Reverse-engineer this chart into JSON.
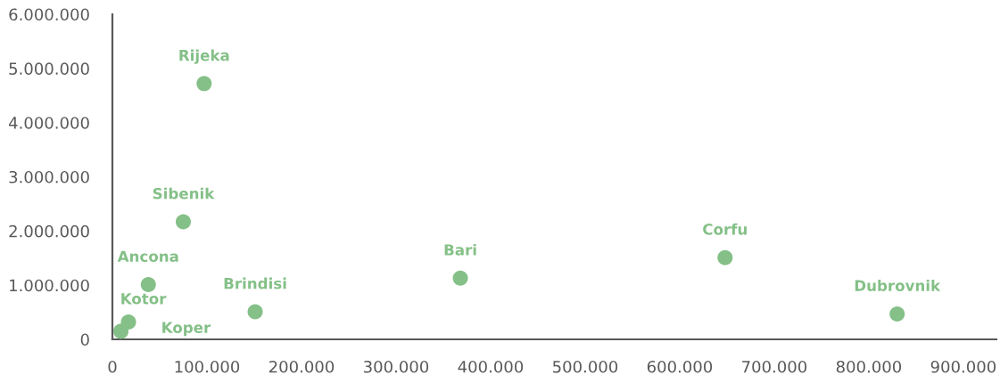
{
  "chart_data": {
    "type": "scatter",
    "xlim": [
      0,
      935000
    ],
    "xticks": [
      0,
      {
        "value": 100000,
        "label": "100.000"
      },
      {
        "value": 200000,
        "label": "200.000"
      },
      {
        "value": 300000,
        "label": "300.000"
      },
      {
        "value": 400000,
        "label": "400.000"
      },
      {
        "value": 500000,
        "label": "500.000"
      },
      {
        "value": 600000,
        "label": "600.000"
      },
      {
        "value": 700000,
        "label": "700.000"
      },
      {
        "value": 800000,
        "label": "800.000"
      },
      {
        "value": 900000,
        "label": "900.000"
      }
    ],
    "ylim": [
      0,
      6000000
    ],
    "yticks": [
      0,
      {
        "value": 1000000,
        "label": "1.000.000"
      },
      {
        "value": 2000000,
        "label": "2.000.000"
      },
      {
        "value": 3000000,
        "label": "3.000.000"
      },
      {
        "value": 4000000,
        "label": "4.000.000"
      },
      {
        "value": 5000000,
        "label": "5.000.000"
      },
      {
        "value": 6000000,
        "label": "6.000.000"
      }
    ],
    "marker": "circle",
    "series": [
      {
        "color": "#84c087",
        "x": [
          97000,
          75000,
          38000,
          17000,
          9000,
          151000,
          368000,
          648000,
          830000
        ],
        "values": [
          4720000,
          2170000,
          1010000,
          320000,
          150000,
          510000,
          1130000,
          1510000,
          470000
        ]
      }
    ],
    "annotations": [
      {
        "text": "Rijeka",
        "x": 97000,
        "y": 4720000
      },
      {
        "text": "Sibenik",
        "x": 75000,
        "y": 2170000
      },
      {
        "text": "Ancona",
        "x": 38000,
        "y": 1010000
      },
      {
        "text": "Kotor",
        "x": 17000,
        "y": 320000
      },
      {
        "text": "Koper",
        "x": 9000,
        "y": 150000
      },
      {
        "text": "Brindisi",
        "x": 151000,
        "y": 510000
      },
      {
        "text": "Bari",
        "x": 368000,
        "y": 1130000
      },
      {
        "text": "Corfu",
        "x": 648000,
        "y": 1510000
      },
      {
        "text": "Dubrovnik",
        "x": 830000,
        "y": 470000
      }
    ]
  }
}
